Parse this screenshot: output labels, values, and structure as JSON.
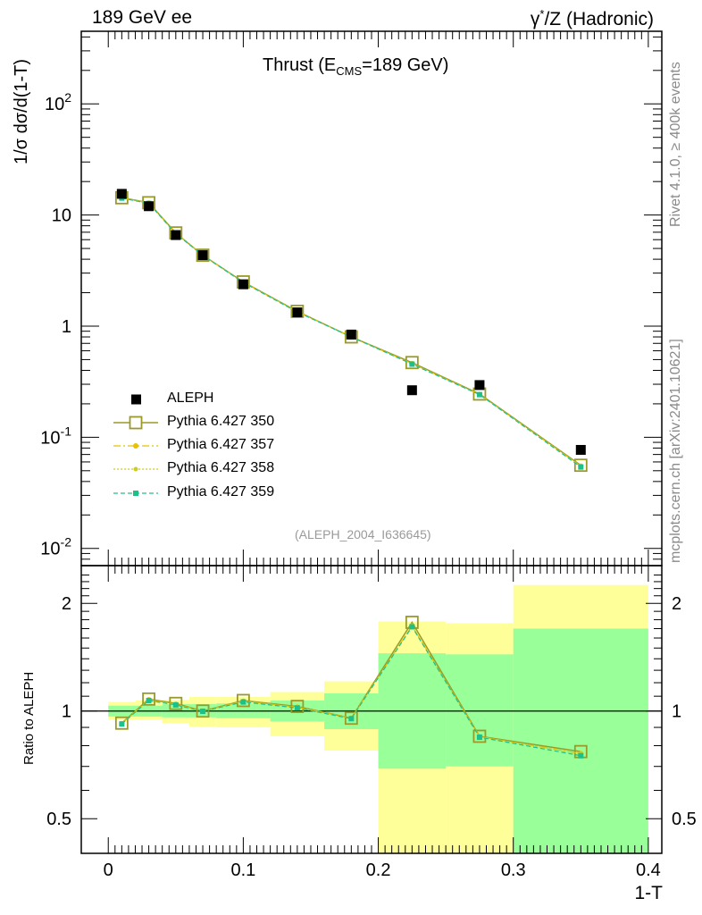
{
  "header": {
    "left": "189 GeV ee",
    "right_base": "γ",
    "right_sup": "*",
    "right_rest": "/Z (Hadronic)"
  },
  "side_labels": {
    "rivet": "Rivet 4.1.0, ≥ 400k events",
    "mcplots": "mcplots.cern.ch [arXiv:2401.10621]"
  },
  "plot_title": {
    "prefix": "Thrust (E",
    "subscript": "CMS",
    "suffix": "=189 GeV)"
  },
  "analysis_id": "(ALEPH_2004_I636645)",
  "colors": {
    "data": "#000000",
    "p350": "#9a9a2a",
    "p357": "#e6c200",
    "p358": "#cccc22",
    "p359": "#1ec08a",
    "band_outer": "#ffff99",
    "band_inner": "#99ff99"
  },
  "legend": [
    {
      "key": "data",
      "label": "ALEPH"
    },
    {
      "key": "p350",
      "label": "Pythia 6.427 350"
    },
    {
      "key": "p357",
      "label": "Pythia 6.427 357"
    },
    {
      "key": "p358",
      "label": "Pythia 6.427 358"
    },
    {
      "key": "p359",
      "label": "Pythia 6.427 359"
    }
  ],
  "chart_data": [
    {
      "type": "scatter",
      "title": "Thrust (E_CMS=189 GeV)",
      "xlabel": "1-T",
      "ylabel_parts": [
        "1/σ  d",
        "σ",
        "/d(1-T)"
      ],
      "ylabel": "1/σ dσ/d(1-T)",
      "yscale": "log",
      "xlim": [
        -0.02,
        0.41
      ],
      "ylim": [
        0.007,
        450
      ],
      "y_ticks": [
        {
          "value": 0.01,
          "base": "10",
          "exp": "-2"
        },
        {
          "value": 0.1,
          "base": "10",
          "exp": "-1"
        },
        {
          "value": 1,
          "base": "1",
          "exp": ""
        },
        {
          "value": 10,
          "base": "10",
          "exp": ""
        },
        {
          "value": 100,
          "base": "10",
          "exp": "2"
        }
      ],
      "x": [
        0.01,
        0.03,
        0.05,
        0.07,
        0.1,
        0.14,
        0.18,
        0.225,
        0.275,
        0.35
      ],
      "series": [
        {
          "name": "ALEPH",
          "key": "data",
          "values": [
            15.5,
            12.0,
            6.6,
            4.35,
            2.38,
            1.33,
            0.84,
            0.265,
            0.295,
            0.077
          ]
        },
        {
          "name": "Pythia 6.427 350",
          "key": "p350",
          "values": [
            14.3,
            12.9,
            6.9,
            4.35,
            2.5,
            1.36,
            0.8,
            0.47,
            0.245,
            0.056
          ]
        },
        {
          "name": "Pythia 6.427 357",
          "key": "p357",
          "values": [
            14.3,
            12.8,
            6.85,
            4.35,
            2.48,
            1.35,
            0.8,
            0.46,
            0.243,
            0.055
          ]
        },
        {
          "name": "Pythia 6.427 358",
          "key": "p358",
          "values": [
            14.3,
            12.8,
            6.85,
            4.35,
            2.48,
            1.35,
            0.8,
            0.46,
            0.243,
            0.055
          ]
        },
        {
          "name": "Pythia 6.427 359",
          "key": "p359",
          "values": [
            14.2,
            12.7,
            6.8,
            4.33,
            2.47,
            1.34,
            0.8,
            0.455,
            0.242,
            0.054
          ]
        }
      ]
    },
    {
      "type": "line",
      "ylabel": "Ratio to ALEPH",
      "xlabel": "1-T",
      "yscale": "log",
      "xlim": [
        -0.02,
        0.41
      ],
      "ylim": [
        0.4,
        2.55
      ],
      "y_ticks": [
        0.5,
        1,
        2
      ],
      "y_tick_labels": [
        "0.5",
        "1",
        "2"
      ],
      "x_ticks": [
        0,
        0.1,
        0.2,
        0.3,
        0.4
      ],
      "x_tick_labels": [
        "0",
        "0.1",
        "0.2",
        "0.3",
        "0.4"
      ],
      "reference_line": 1,
      "x": [
        0.01,
        0.03,
        0.05,
        0.07,
        0.1,
        0.14,
        0.18,
        0.225,
        0.275,
        0.35
      ],
      "bands": [
        {
          "x0": 0.0,
          "x1": 0.02,
          "inner": [
            0.965,
            1.035
          ],
          "outer": [
            0.945,
            1.06
          ]
        },
        {
          "x0": 0.02,
          "x1": 0.04,
          "inner": [
            0.965,
            1.035
          ],
          "outer": [
            0.945,
            1.07
          ]
        },
        {
          "x0": 0.04,
          "x1": 0.06,
          "inner": [
            0.96,
            1.045
          ],
          "outer": [
            0.925,
            1.075
          ]
        },
        {
          "x0": 0.06,
          "x1": 0.08,
          "inner": [
            0.96,
            1.045
          ],
          "outer": [
            0.905,
            1.095
          ]
        },
        {
          "x0": 0.08,
          "x1": 0.12,
          "inner": [
            0.955,
            1.05
          ],
          "outer": [
            0.9,
            1.095
          ]
        },
        {
          "x0": 0.12,
          "x1": 0.16,
          "inner": [
            0.935,
            1.07
          ],
          "outer": [
            0.85,
            1.13
          ]
        },
        {
          "x0": 0.16,
          "x1": 0.2,
          "inner": [
            0.89,
            1.12
          ],
          "outer": [
            0.775,
            1.21
          ]
        },
        {
          "x0": 0.2,
          "x1": 0.25,
          "inner": [
            0.69,
            1.45
          ],
          "outer": [
            0.4,
            1.78
          ]
        },
        {
          "x0": 0.25,
          "x1": 0.3,
          "inner": [
            0.7,
            1.44
          ],
          "outer": [
            0.4,
            1.76
          ]
        },
        {
          "x0": 0.3,
          "x1": 0.4,
          "inner": [
            0.4,
            1.7
          ],
          "outer": [
            0.4,
            2.25
          ]
        }
      ],
      "series": [
        {
          "name": "Pythia 6.427 350",
          "key": "p350",
          "values": [
            0.925,
            1.08,
            1.05,
            1.0,
            1.07,
            1.03,
            0.955,
            1.77,
            0.85,
            0.77
          ]
        },
        {
          "name": "Pythia 6.427 357",
          "key": "p357",
          "values": [
            0.922,
            1.075,
            1.045,
            1.0,
            1.065,
            1.025,
            0.955,
            1.73,
            0.848,
            0.76
          ]
        },
        {
          "name": "Pythia 6.427 358",
          "key": "p358",
          "values": [
            0.922,
            1.075,
            1.045,
            1.0,
            1.065,
            1.025,
            0.955,
            1.73,
            0.848,
            0.76
          ]
        },
        {
          "name": "Pythia 6.427 359",
          "key": "p359",
          "values": [
            0.92,
            1.07,
            1.04,
            0.998,
            1.06,
            1.02,
            0.952,
            1.72,
            0.845,
            0.75
          ]
        }
      ]
    }
  ]
}
